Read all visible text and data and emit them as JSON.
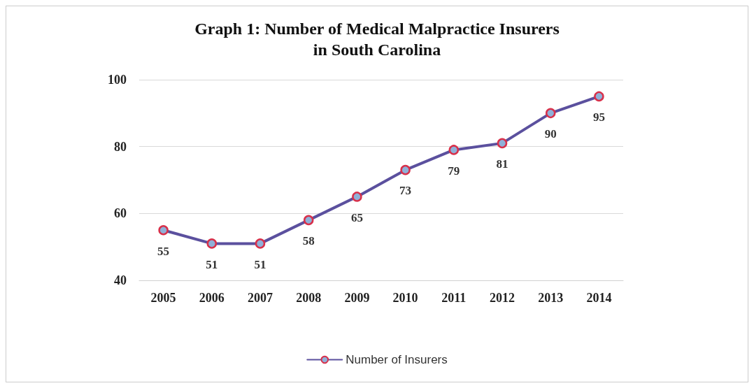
{
  "chart_data": {
    "type": "line",
    "title": "Graph 1: Number of Medical Malpractice Insurers\nin South Carolina",
    "categories": [
      "2005",
      "2006",
      "2007",
      "2008",
      "2009",
      "2010",
      "2011",
      "2012",
      "2013",
      "2014"
    ],
    "series": [
      {
        "name": "Number of Insurers",
        "color": "#5b509e",
        "values": [
          55,
          51,
          51,
          58,
          65,
          73,
          79,
          81,
          90,
          95
        ]
      }
    ],
    "ylim": [
      40,
      100
    ],
    "yticks": [
      40,
      60,
      80,
      100
    ],
    "grid": "y",
    "legend": "bottom",
    "marker": "circle",
    "line_style": "solid",
    "data_labels": true
  }
}
